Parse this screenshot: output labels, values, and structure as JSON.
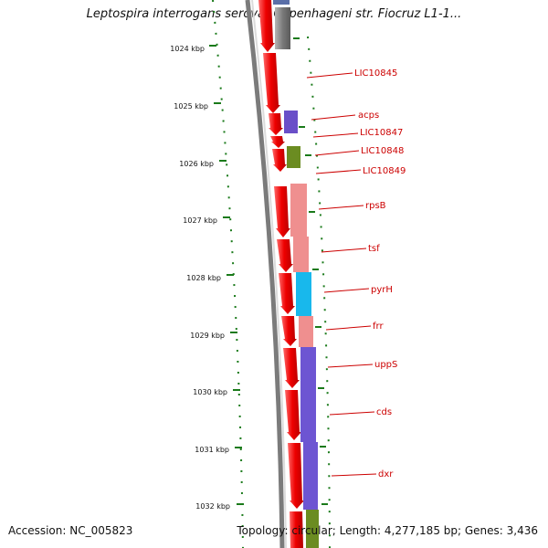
{
  "title": "Leptospira interrogans serovar Copenhageni str. Fiocruz L1-1...",
  "footer": {
    "accession": "Accession: NC_005823",
    "topology": "Topology: circular; Length: 4,277,185 bp; Genes: 3,436"
  },
  "ticks": [
    "1024 kbp",
    "1025 kbp",
    "1026 kbp",
    "1027 kbp",
    "1028 kbp",
    "1029 kbp",
    "1030 kbp",
    "1031 kbp",
    "1032 kbp"
  ],
  "gene_labels": [
    "LIC10845",
    "acps",
    "LIC10847",
    "LIC10848",
    "LIC10849",
    "rpsB",
    "tsf",
    "pyrH",
    "frr",
    "uppS",
    "cds",
    "dxr"
  ],
  "colors": {
    "cds": "#e60000",
    "tick": "#1a7a1a",
    "label": "#cc0000",
    "backbone": "#808080"
  }
}
